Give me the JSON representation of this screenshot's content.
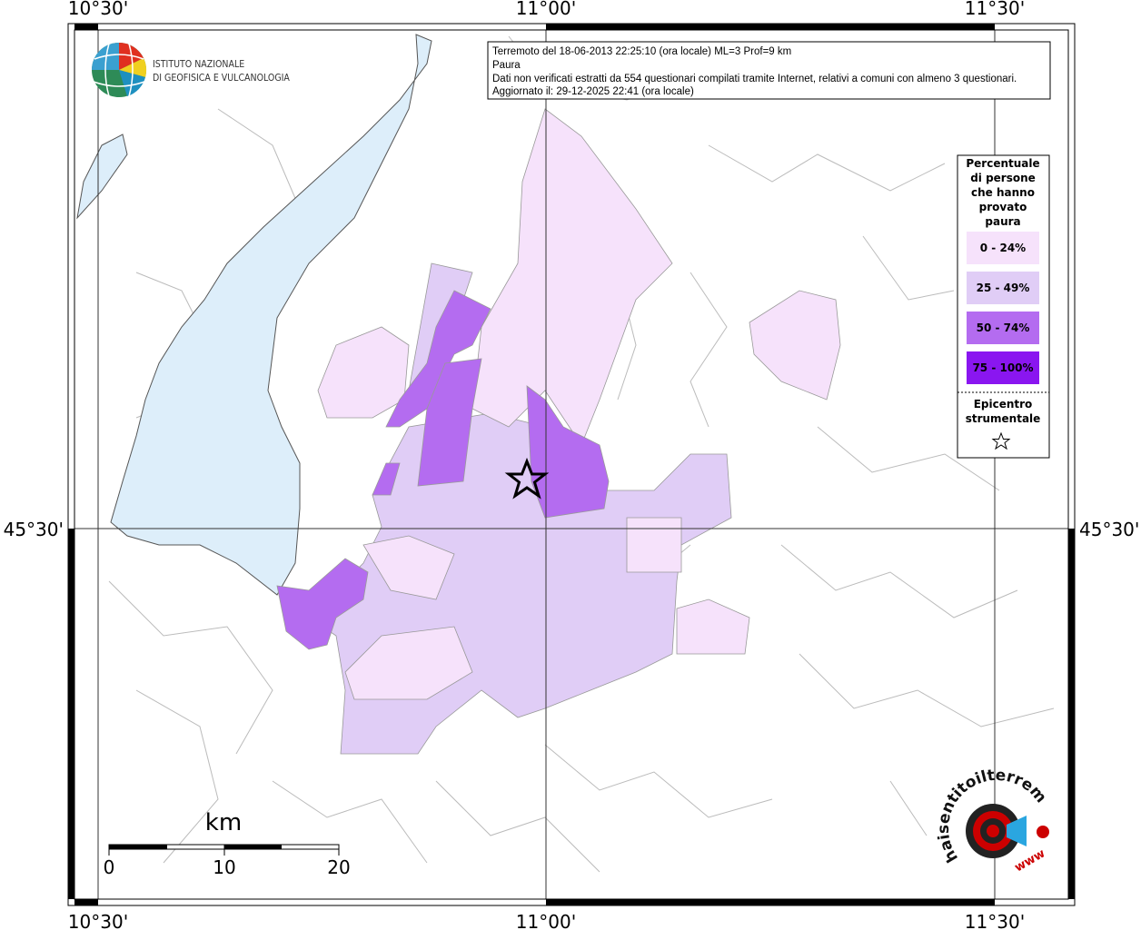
{
  "frame": {
    "top_labels": [
      "10°30'",
      "11°00'",
      "11°30'"
    ],
    "bottom_labels": [
      "10°30'",
      "11°00'",
      "11°30'"
    ],
    "left_label": "45°30'",
    "right_label": "45°30'"
  },
  "logo": {
    "line1": "ISTITUTO NAZIONALE",
    "line2": "DI GEOFISICA E VULCANOLOGIA"
  },
  "info": {
    "lines": [
      "Terremoto del 18-06-2013 22:25:10 (ora locale) ML=3 Prof=9 km",
      "Paura",
      "Dati non verificati estratti da 554 questionari compilati tramite Internet, relativi a comuni con almeno 3 questionari.",
      "Aggiornato il: 29-12-2025 22:41 (ora locale)"
    ]
  },
  "legend": {
    "title_lines": [
      "Percentuale",
      "di persone",
      "che hanno",
      "provato",
      "paura"
    ],
    "items": [
      {
        "label": "0 - 24%",
        "color": "#f6e2fb"
      },
      {
        "label": "25 - 49%",
        "color": "#e0cdf6"
      },
      {
        "label": "50 - 74%",
        "color": "#b46cf0"
      },
      {
        "label": "75 - 100%",
        "color": "#8a16f0"
      }
    ],
    "epicenter_lines": [
      "Epicentro",
      "strumentale"
    ]
  },
  "scale": {
    "unit": "km",
    "labels": [
      "0",
      "10",
      "20"
    ]
  },
  "badge": {
    "text": "haisentitoilterremoto.it",
    "www": "www"
  }
}
